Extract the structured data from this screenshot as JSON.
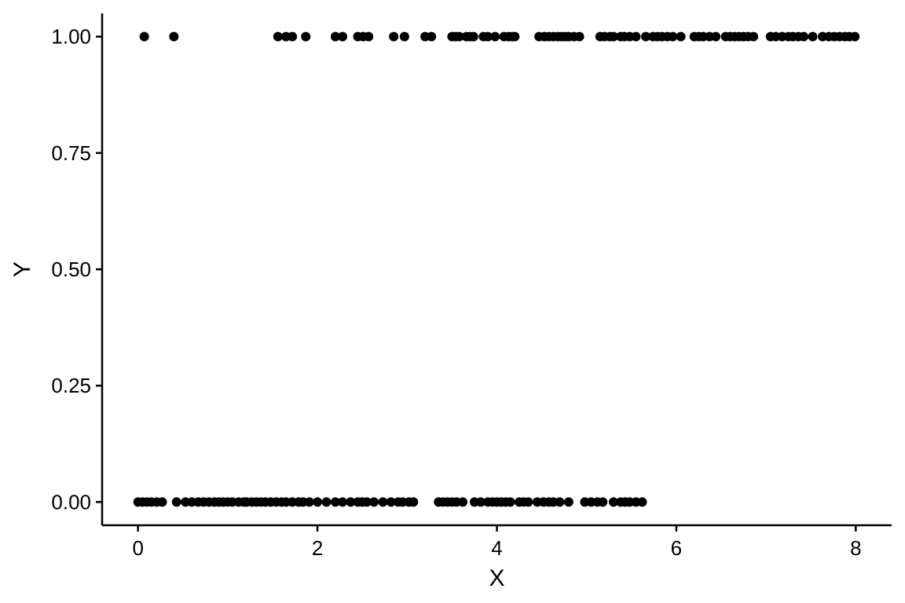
{
  "chart_data": {
    "type": "scatter",
    "title": "",
    "xlabel": "X",
    "ylabel": "Y",
    "xlim": [
      -0.4,
      8.4
    ],
    "ylim": [
      -0.05,
      1.05
    ],
    "xticks": [
      0,
      2,
      4,
      6,
      8
    ],
    "xtick_labels": [
      "0",
      "2",
      "4",
      "6",
      "8"
    ],
    "yticks": [
      0,
      0.25,
      0.5,
      0.75,
      1
    ],
    "ytick_labels": [
      "0.00",
      "0.25",
      "0.50",
      "0.75",
      "1.00"
    ],
    "grid": false,
    "point_color": "#000000",
    "series": [
      {
        "y": 1,
        "x": [
          0.07,
          0.4,
          1.56,
          1.65,
          1.72,
          1.87,
          2.2,
          2.28,
          2.45,
          2.51,
          2.57,
          2.85,
          2.97,
          3.2,
          3.27,
          3.5,
          3.54,
          3.58,
          3.66,
          3.7,
          3.74,
          3.85,
          3.9,
          3.98,
          4.08,
          4.13,
          4.17,
          4.2,
          4.47,
          4.53,
          4.58,
          4.63,
          4.68,
          4.72,
          4.76,
          4.8,
          4.86,
          4.92,
          5.15,
          5.2,
          5.26,
          5.3,
          5.38,
          5.42,
          5.48,
          5.55,
          5.66,
          5.74,
          5.79,
          5.84,
          5.9,
          5.96,
          6.05,
          6.2,
          6.25,
          6.3,
          6.37,
          6.44,
          6.55,
          6.6,
          6.65,
          6.7,
          6.75,
          6.8,
          6.86,
          7.05,
          7.11,
          7.18,
          7.25,
          7.3,
          7.36,
          7.42,
          7.52,
          7.63,
          7.7,
          7.76,
          7.82,
          7.88,
          7.93,
          7.99
        ]
      },
      {
        "y": 0,
        "x": [
          0.0,
          0.05,
          0.1,
          0.15,
          0.21,
          0.27,
          0.43,
          0.53,
          0.6,
          0.67,
          0.73,
          0.79,
          0.85,
          0.9,
          0.95,
          1.0,
          1.05,
          1.12,
          1.18,
          1.21,
          1.27,
          1.32,
          1.37,
          1.42,
          1.48,
          1.54,
          1.6,
          1.65,
          1.72,
          1.79,
          1.84,
          1.91,
          2.0,
          2.1,
          2.2,
          2.28,
          2.37,
          2.45,
          2.5,
          2.55,
          2.63,
          2.73,
          2.82,
          2.9,
          2.95,
          3.02,
          3.07,
          3.35,
          3.4,
          3.45,
          3.5,
          3.55,
          3.62,
          3.75,
          3.82,
          3.9,
          3.95,
          4.0,
          4.05,
          4.1,
          4.15,
          4.25,
          4.3,
          4.35,
          4.45,
          4.52,
          4.58,
          4.63,
          4.7,
          4.8,
          4.98,
          5.05,
          5.12,
          5.18,
          5.3,
          5.38,
          5.43,
          5.48,
          5.55,
          5.62
        ]
      }
    ]
  }
}
